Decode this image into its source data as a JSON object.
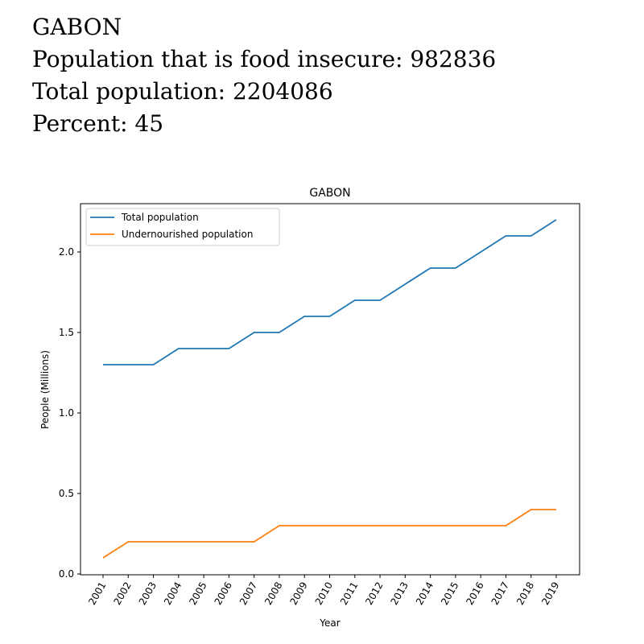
{
  "header": {
    "country": "GABON",
    "food_insecure_line": "Population that is food insecure: 982836",
    "total_population_line": "Total population: 2204086",
    "percent_line": "Percent: 45"
  },
  "chart_data": {
    "type": "line",
    "title": "GABON",
    "xlabel": "Year",
    "ylabel": "People (Millions)",
    "categories": [
      "2001",
      "2002",
      "2003",
      "2004",
      "2005",
      "2006",
      "2007",
      "2008",
      "2009",
      "2010",
      "2011",
      "2012",
      "2013",
      "2014",
      "2015",
      "2016",
      "2017",
      "2018",
      "2019"
    ],
    "ylim": [
      0,
      2.3
    ],
    "yticks": [
      0.0,
      0.5,
      1.0,
      1.5,
      2.0
    ],
    "ytick_labels": [
      "0.0",
      "0.5",
      "1.0",
      "1.5",
      "2.0"
    ],
    "legend_position": "top-left",
    "grid": false,
    "series": [
      {
        "name": "Total population",
        "color": "#1f77b4",
        "values": [
          1.3,
          1.3,
          1.3,
          1.4,
          1.4,
          1.4,
          1.5,
          1.5,
          1.6,
          1.6,
          1.7,
          1.7,
          1.8,
          1.9,
          1.9,
          2.0,
          2.1,
          2.1,
          2.2
        ]
      },
      {
        "name": "Undernourished population",
        "color": "#ff7f0e",
        "values": [
          0.1,
          0.2,
          0.2,
          0.2,
          0.2,
          0.2,
          0.2,
          0.3,
          0.3,
          0.3,
          0.3,
          0.3,
          0.3,
          0.3,
          0.3,
          0.3,
          0.3,
          0.4,
          0.4
        ]
      }
    ]
  }
}
